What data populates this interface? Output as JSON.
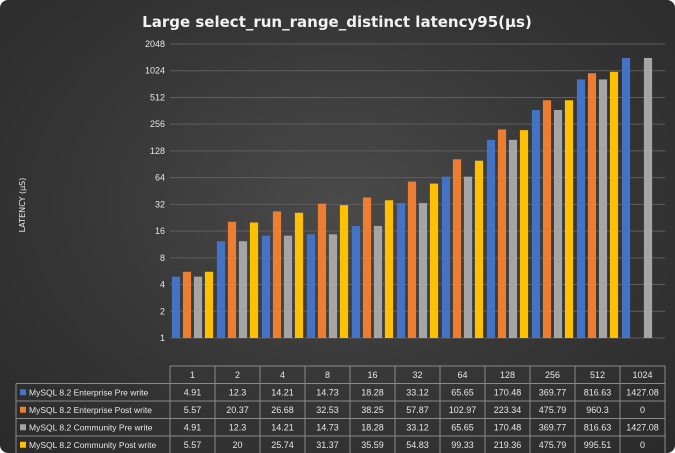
{
  "chart_data": {
    "type": "bar",
    "title": "Large select_run_range_distinct   latency95(µs)",
    "ylabel": "LATENCY (µS)",
    "yscale": "log2",
    "ylim": [
      1,
      2048
    ],
    "yticks": [
      "1",
      "2",
      "4",
      "8",
      "16",
      "32",
      "64",
      "128",
      "256",
      "512",
      "1024",
      "2048"
    ],
    "grid": true,
    "legend": "data-table-left",
    "categories": [
      "1",
      "2",
      "4",
      "8",
      "16",
      "32",
      "64",
      "128",
      "256",
      "512",
      "1024"
    ],
    "series": [
      {
        "name": "MySQL 8.2 Enterprise Pre write",
        "color": "#4472c4",
        "values": [
          4.91,
          12.3,
          14.21,
          14.73,
          18.28,
          33.12,
          65.65,
          170.48,
          369.77,
          816.63,
          1427.08
        ]
      },
      {
        "name": "MySQL 8.2 Enterprise Post write",
        "color": "#ed7d31",
        "values": [
          5.57,
          20.37,
          26.68,
          32.53,
          38.25,
          57.87,
          102.97,
          223.34,
          475.79,
          960.3,
          0
        ]
      },
      {
        "name": "MySQL 8.2 Community Pre write",
        "color": "#a5a5a5",
        "values": [
          4.91,
          12.3,
          14.21,
          14.73,
          18.28,
          33.12,
          65.65,
          170.48,
          369.77,
          816.63,
          1427.08
        ]
      },
      {
        "name": "MySQL 8.2 Community Post write",
        "color": "#ffc000",
        "values": [
          5.57,
          20,
          25.74,
          31.37,
          35.59,
          54.83,
          99.33,
          219.36,
          475.79,
          995.51,
          0
        ]
      }
    ]
  }
}
